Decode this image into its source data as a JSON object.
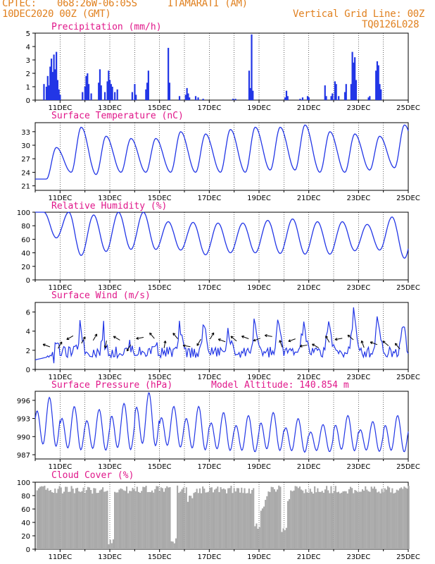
{
  "header": {
    "source": "CPTEC:",
    "coords": "068:26W-06:05S",
    "station": "ITAMARATI (AM)",
    "date": "10DEC2020 00Z (GMT)",
    "grid_note": "Vertical Grid Line: 00Z",
    "model_code": "TQ0126L028"
  },
  "colors": {
    "header": "#e0801f",
    "title": "#e0178a",
    "line": "#2236e6",
    "bar": "#2236e6",
    "cloud": "#a8a8a8"
  },
  "x_ticks": [
    "11DEC",
    "13DEC",
    "15DEC",
    "17DEC",
    "19DEC",
    "21DEC",
    "23DEC",
    "25DEC"
  ],
  "chart_data": [
    {
      "type": "bar",
      "title": "Precipitation (mm/h)",
      "ylim": [
        0,
        5
      ],
      "yticks": [
        "0",
        "1",
        "2",
        "3",
        "4",
        "5"
      ],
      "x_range_days": [
        "10DEC",
        "25DEC"
      ],
      "events": [
        [
          10.35,
          1.2
        ],
        [
          10.45,
          1.0
        ],
        [
          10.5,
          1.8
        ],
        [
          10.55,
          1.1
        ],
        [
          10.6,
          2.5
        ],
        [
          10.65,
          3.1
        ],
        [
          10.7,
          2.1
        ],
        [
          10.75,
          3.4
        ],
        [
          10.8,
          2.3
        ],
        [
          10.85,
          3.6
        ],
        [
          10.9,
          1.5
        ],
        [
          10.95,
          0.8
        ],
        [
          11.0,
          0.4
        ],
        [
          11.9,
          0.6
        ],
        [
          12.0,
          1.0
        ],
        [
          12.05,
          1.8
        ],
        [
          12.1,
          2.0
        ],
        [
          12.15,
          1.2
        ],
        [
          12.25,
          0.5
        ],
        [
          12.55,
          1.3
        ],
        [
          12.6,
          2.3
        ],
        [
          12.65,
          1.1
        ],
        [
          12.8,
          0.6
        ],
        [
          12.9,
          1.4
        ],
        [
          12.95,
          2.2
        ],
        [
          13.0,
          1.5
        ],
        [
          13.05,
          1.2
        ],
        [
          13.1,
          1.0
        ],
        [
          13.2,
          0.6
        ],
        [
          13.3,
          0.8
        ],
        [
          13.9,
          0.6
        ],
        [
          14.0,
          1.2
        ],
        [
          14.05,
          0.4
        ],
        [
          14.45,
          0.8
        ],
        [
          14.5,
          1.3
        ],
        [
          14.55,
          2.2
        ],
        [
          15.35,
          3.9
        ],
        [
          15.4,
          1.3
        ],
        [
          15.8,
          0.3
        ],
        [
          16.05,
          0.4
        ],
        [
          16.1,
          0.9
        ],
        [
          16.15,
          0.5
        ],
        [
          16.2,
          0.2
        ],
        [
          16.45,
          0.3
        ],
        [
          16.55,
          0.2
        ],
        [
          16.75,
          0.1
        ],
        [
          17.95,
          0.1
        ],
        [
          18.05,
          0.1
        ],
        [
          18.6,
          2.2
        ],
        [
          18.65,
          0.9
        ],
        [
          18.7,
          4.9
        ],
        [
          18.75,
          0.7
        ],
        [
          20.05,
          0.2
        ],
        [
          20.1,
          0.7
        ],
        [
          20.15,
          0.3
        ],
        [
          20.65,
          0.1
        ],
        [
          20.75,
          0.2
        ],
        [
          20.95,
          0.3
        ],
        [
          21.0,
          0.2
        ],
        [
          21.65,
          1.1
        ],
        [
          21.7,
          0.3
        ],
        [
          21.9,
          0.3
        ],
        [
          21.95,
          0.5
        ],
        [
          22.05,
          1.4
        ],
        [
          22.1,
          1.2
        ],
        [
          22.2,
          0.3
        ],
        [
          22.45,
          0.6
        ],
        [
          22.5,
          1.2
        ],
        [
          22.7,
          1.2
        ],
        [
          22.75,
          3.6
        ],
        [
          22.8,
          2.8
        ],
        [
          22.85,
          3.2
        ],
        [
          22.9,
          1.5
        ],
        [
          23.4,
          0.2
        ],
        [
          23.45,
          0.3
        ],
        [
          23.7,
          2.2
        ],
        [
          23.75,
          2.9
        ],
        [
          23.8,
          2.6
        ],
        [
          23.85,
          1.2
        ],
        [
          23.9,
          0.8
        ]
      ]
    },
    {
      "type": "line",
      "title": "Surface Temperature (nC)",
      "ylim": [
        20,
        35
      ],
      "yticks": [
        "21",
        "24",
        "27",
        "30",
        "33"
      ],
      "minima": [
        22.5,
        24.0,
        23.5,
        24.0,
        24.0,
        24.0,
        24.0,
        24.0,
        24.0,
        24.5,
        24.5,
        24.0,
        24.0,
        24.5,
        25.0,
        25.5
      ],
      "maxima": [
        29.5,
        34.0,
        32.0,
        31.5,
        31.5,
        33.0,
        32.5,
        33.5,
        34.0,
        34.0,
        34.5,
        33.0,
        32.5,
        32.0,
        34.5
      ]
    },
    {
      "type": "line",
      "title": "Relative Humidity (%)",
      "ylim": [
        0,
        100
      ],
      "yticks": [
        "0",
        "20",
        "40",
        "60",
        "80",
        "100"
      ],
      "maxima": [
        100,
        100,
        96,
        100,
        100,
        86,
        85,
        84,
        84,
        88,
        90,
        86,
        86,
        82,
        93,
        100
      ],
      "minima": [
        62,
        36,
        42,
        45,
        45,
        44,
        37,
        40,
        40,
        39,
        38,
        38,
        43,
        44,
        32
      ]
    },
    {
      "type": "line",
      "title": "Surface Wind (m/s)",
      "ylim": [
        0,
        7
      ],
      "yticks": [
        "0",
        "2",
        "4",
        "6"
      ],
      "daily_peaks": [
        1.0,
        3.2,
        5.0,
        2.5,
        2.5,
        2.8,
        4.5,
        4.3,
        3.3,
        5.2,
        4.5,
        4.7,
        5.2,
        6.2,
        5.0
      ],
      "baseline": 1.8,
      "arrows_deg": [
        200,
        300,
        150,
        300,
        300,
        100,
        210,
        120,
        170,
        230,
        280,
        230,
        190,
        120,
        300,
        200,
        220,
        200,
        160,
        190,
        250,
        160,
        170,
        210,
        240,
        170,
        220,
        250,
        200,
        220,
        230
      ]
    },
    {
      "type": "line",
      "title": "Surface Pressure (hPa)",
      "subtitle": "Model Altitude: 140.854 m",
      "ylim": [
        986.3,
        997.5
      ],
      "yticks": [
        "987",
        "990",
        "993",
        "996"
      ],
      "semi_diurnal_peaks": [
        996.5,
        995.0,
        994.5,
        995.5,
        997.3,
        995.0,
        995.0,
        994.0,
        993.5,
        994.0,
        993.0,
        992.0,
        993.5,
        992.5,
        993.5
      ],
      "semi_diurnal_troughs": [
        987.5,
        987.0,
        987.0,
        987.0,
        987.5,
        987.5,
        987.0,
        987.0,
        986.8,
        987.0,
        986.8,
        987.0,
        987.0,
        987.0,
        986.8
      ]
    },
    {
      "type": "bar",
      "title": "Cloud Cover (%)",
      "ylim": [
        0,
        100
      ],
      "yticks": [
        "0",
        "20",
        "40",
        "60",
        "80",
        "100"
      ],
      "typical_value": 95,
      "dips": [
        [
          13.0,
          5
        ],
        [
          15.55,
          8
        ],
        [
          16.2,
          70
        ],
        [
          18.9,
          30
        ],
        [
          19.1,
          60
        ],
        [
          19.95,
          22
        ],
        [
          20.1,
          70
        ],
        [
          22.5,
          80
        ]
      ]
    }
  ]
}
